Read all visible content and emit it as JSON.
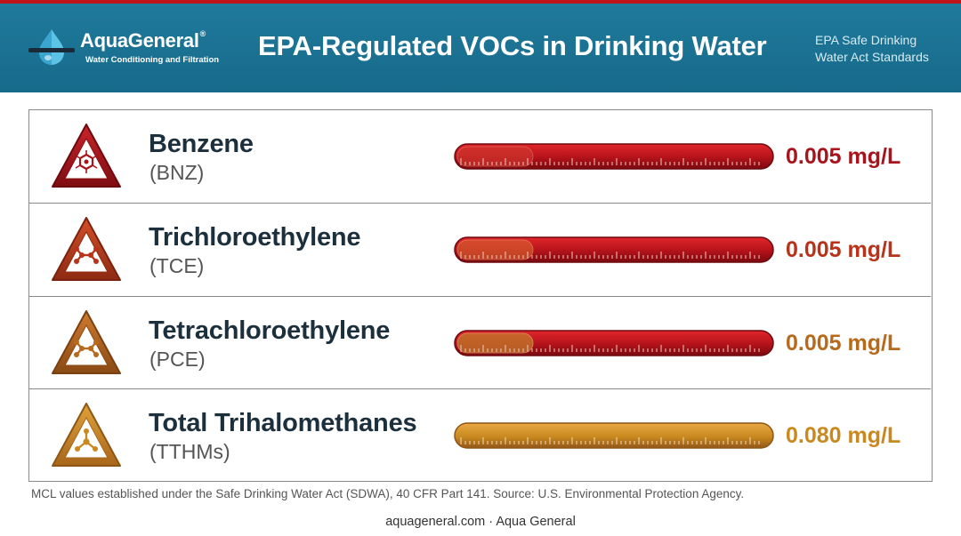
{
  "header": {
    "brand_name": "AquaGeneral",
    "brand_reg": "®",
    "brand_tagline": "Water Conditioning and Filtration",
    "title": "EPA-Regulated VOCs in Drinking Water",
    "subtitle_line1": "EPA Safe Drinking",
    "subtitle_line2": "Water Act Standards"
  },
  "colors": {
    "header_bg": "#1b7294",
    "accent_red": "#b4161b",
    "accent_orange": "#c07818",
    "accent_amber": "#c9891f"
  },
  "rows": [
    {
      "name": "Benzene",
      "abbr": "(BNZ)",
      "value": "0.005 mg/L",
      "icon": "benzene-hazard-icon",
      "color": "#a8141b",
      "bar_level": 1.0
    },
    {
      "name": "Trichloroethylene",
      "abbr": "(TCE)",
      "value": "0.005 mg/L",
      "icon": "tce-hazard-icon",
      "color": "#b8331a",
      "bar_level": 1.0
    },
    {
      "name": "Tetrachloroethylene",
      "abbr": "(PCE)",
      "value": "0.005 mg/L",
      "icon": "pce-hazard-icon",
      "color": "#b86a1c",
      "bar_level": 1.0
    },
    {
      "name": "Total Trihalomethanes",
      "abbr": "(TTHMs)",
      "value": "0.080 mg/L",
      "icon": "tthm-hazard-icon",
      "color": "#c9891f",
      "bar_level": 1.0
    }
  ],
  "footnote": "MCL values established under the Safe Drinking Water Act (SDWA), 40 CFR Part 141. Source: U.S. Environmental Protection Agency.",
  "footer": "aquageneral.com · Aqua General"
}
